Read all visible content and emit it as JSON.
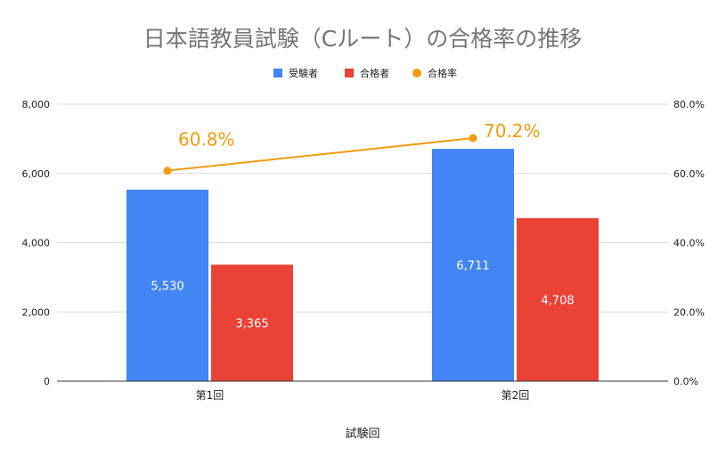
{
  "chart_data": {
    "type": "bar",
    "title": "日本語教員試験（Cルート）の合格率の推移",
    "xlabel": "試験回",
    "categories": [
      "第1回",
      "第2回"
    ],
    "series": [
      {
        "name": "受験者",
        "type": "bar",
        "axis": "left",
        "values": [
          5530,
          6711
        ],
        "value_labels": [
          "5,530",
          "6,711"
        ],
        "color": "#4285f4"
      },
      {
        "name": "合格者",
        "type": "bar",
        "axis": "left",
        "values": [
          3365,
          4708
        ],
        "value_labels": [
          "3,365",
          "4,708"
        ],
        "color": "#ea4335"
      },
      {
        "name": "合格率",
        "type": "line",
        "axis": "right",
        "values": [
          60.8,
          70.2
        ],
        "value_labels": [
          "60.8%",
          "70.2%"
        ],
        "color": "#f29c11"
      }
    ],
    "y_left": {
      "ylim": [
        0,
        8000
      ],
      "ticks": [
        "0",
        "2,000",
        "4,000",
        "6,000",
        "8,000"
      ]
    },
    "y_right": {
      "ylim": [
        0,
        80
      ],
      "ticks": [
        "0.0%",
        "20.0%",
        "40.0%",
        "60.0%",
        "80.0%"
      ]
    },
    "grid": true,
    "legend": "top-center"
  }
}
